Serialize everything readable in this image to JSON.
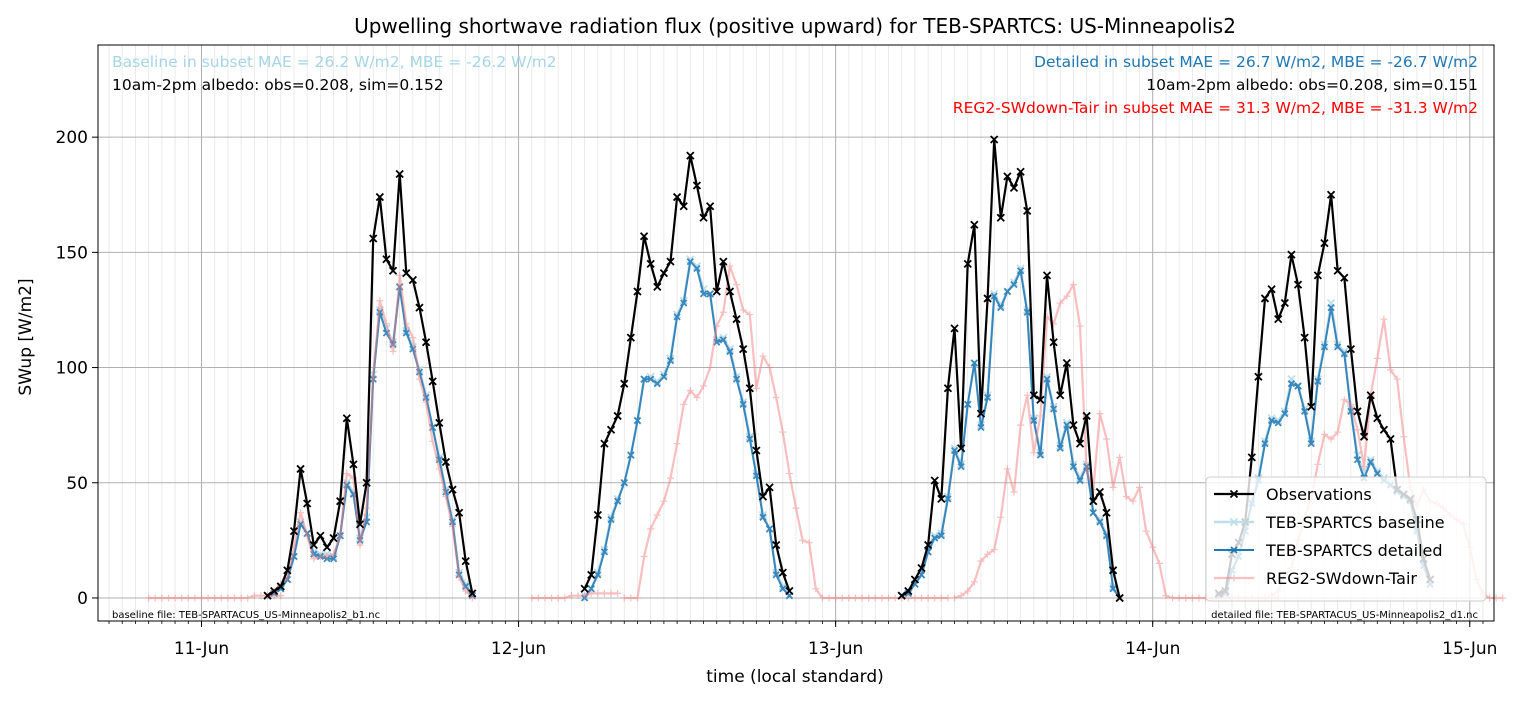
{
  "chart_data": {
    "type": "line",
    "title": "Upwelling shortwave radiation flux (positive upward) for TEB-SPARTCS: US-Minneapolis2",
    "xlabel": "time (local standard)",
    "ylabel": "SWup [W/m2]",
    "xlim": [
      "2011-06-10T16:10",
      "2011-06-15T01:50"
    ],
    "ylim": [
      -10,
      240
    ],
    "x_ticks": [
      {
        "value": "2011-06-11T00:00",
        "label": "11-Jun"
      },
      {
        "value": "2011-06-12T00:00",
        "label": "12-Jun"
      },
      {
        "value": "2011-06-13T00:00",
        "label": "13-Jun"
      },
      {
        "value": "2011-06-14T00:00",
        "label": "14-Jun"
      },
      {
        "value": "2011-06-15T00:00",
        "label": "15-Jun"
      }
    ],
    "y_ticks": [
      0,
      50,
      100,
      150,
      200
    ],
    "grid": true,
    "minor_grid_interval_hours": 1,
    "legend_position": "bottom-right",
    "annotations": {
      "baseline_error": "Baseline in subset MAE = 26.2 W/m2, MBE = -26.2 W/m2",
      "baseline_albedo": "10am-2pm albedo: obs=0.208, sim=0.152",
      "detailed_error": "Detailed in subset MAE = 26.7 W/m2, MBE = -26.7 W/m2",
      "detailed_albedo": "10am-2pm albedo: obs=0.208, sim=0.151",
      "reg2_error": "REG2-SWdown-Tair in subset MAE = 31.3 W/m2, MBE = -31.3 W/m2",
      "baseline_file": "baseline file: TEB-SPARTACUS_US-Minneapolis2_b1.nc",
      "detailed_file": "detailed file: TEB-SPARTACUS_US-Minneapolis2_d1.nc"
    },
    "annotation_colors": {
      "baseline": "#a6d5e5",
      "detailed": "#1f77b4",
      "reg2": "#ff0000",
      "neutral": "#000000"
    },
    "series": [
      {
        "name": "Observations",
        "color": "#000000",
        "marker": "x",
        "segments": [
          {
            "start": "2011-06-11T05:00",
            "step_minutes": 30,
            "values": [
              1,
              3,
              5,
              12,
              29,
              56,
              41,
              23,
              27,
              22,
              26,
              42,
              78,
              58,
              32,
              50,
              156,
              174,
              147,
              142,
              184,
              141,
              138,
              126,
              111,
              94,
              76,
              59,
              47,
              37,
              16,
              2
            ]
          },
          {
            "start": "2011-06-12T05:00",
            "step_minutes": 30,
            "values": [
              4,
              10,
              36,
              67,
              73,
              79,
              93,
              113,
              133,
              157,
              145,
              135,
              141,
              146,
              174,
              170,
              192,
              179,
              165,
              170,
              133,
              146,
              133,
              121,
              108,
              91,
              64,
              44,
              48,
              23,
              11,
              3
            ]
          },
          {
            "start": "2011-06-13T05:00",
            "step_minutes": 30,
            "values": [
              1,
              3,
              8,
              13,
              23,
              51,
              43,
              91,
              117,
              65,
              145,
              162,
              80,
              130,
              199,
              165,
              183,
              178,
              185,
              168,
              88,
              86,
              140,
              111,
              88,
              102,
              75,
              67,
              79,
              42,
              46,
              37,
              12,
              0
            ]
          },
          {
            "start": "2011-06-14T05:00",
            "step_minutes": 30,
            "values": [
              2,
              3,
              19,
              24,
              33,
              61,
              96,
              130,
              134,
              121,
              128,
              149,
              136,
              113,
              83,
              140,
              154,
              175,
              142,
              139,
              108,
              81,
              70,
              88,
              78,
              73,
              69,
              47,
              45,
              43,
              34,
              17,
              8
            ]
          }
        ]
      },
      {
        "name": "TEB-SPARTCS baseline",
        "color": "#b8dbe9",
        "marker": "x",
        "segments": [
          {
            "start": "2011-06-11T05:00",
            "step_minutes": 30,
            "values": [
              1,
              2,
              4,
              8,
              18,
              33,
              28,
              20,
              19,
              19,
              18,
              27,
              50,
              46,
              26,
              35,
              97,
              125,
              117,
              111,
              135,
              116,
              109,
              99,
              88,
              74,
              61,
              47,
              34,
              11,
              6,
              1
            ]
          },
          {
            "start": "2011-06-12T05:00",
            "step_minutes": 30,
            "values": [
              1,
              4,
              11,
              21,
              35,
              43,
              50,
              62,
              77,
              95,
              96,
              94,
              97,
              104,
              123,
              129,
              147,
              144,
              134,
              132,
              112,
              113,
              108,
              96,
              85,
              70,
              54,
              36,
              30,
              11,
              5,
              1
            ]
          },
          {
            "start": "2011-06-13T05:00",
            "step_minutes": 30,
            "values": [
              1,
              2,
              6,
              10,
              20,
              27,
              28,
              44,
              65,
              58,
              84,
              102,
              75,
              88,
              132,
              127,
              133,
              137,
              143,
              125,
              78,
              63,
              96,
              83,
              66,
              76,
              58,
              52,
              58,
              37,
              34,
              28,
              5,
              0
            ]
          },
          {
            "start": "2011-06-14T05:00",
            "step_minutes": 30,
            "values": [
              1,
              2,
              12,
              18,
              29,
              42,
              52,
              68,
              78,
              77,
              81,
              95,
              92,
              82,
              68,
              95,
              110,
              128,
              110,
              107,
              82,
              62,
              54,
              60,
              55,
              52,
              50,
              47,
              45,
              43,
              30,
              15,
              6
            ]
          }
        ]
      },
      {
        "name": "TEB-SPARTCS detailed",
        "color": "#1f77b4",
        "marker": "x",
        "segments": [
          {
            "start": "2011-06-11T05:00",
            "step_minutes": 30,
            "values": [
              1,
              2,
              4,
              8,
              18,
              32,
              28,
              19,
              18,
              17,
              17,
              27,
              49,
              45,
              25,
              33,
              95,
              124,
              115,
              110,
              135,
              115,
              108,
              98,
              87,
              74,
              60,
              46,
              33,
              10,
              5,
              1
            ]
          },
          {
            "start": "2011-06-12T05:00",
            "step_minutes": 30,
            "values": [
              0,
              4,
              10,
              20,
              34,
              42,
              50,
              62,
              77,
              95,
              95,
              93,
              96,
              103,
              122,
              128,
              146,
              143,
              132,
              132,
              111,
              112,
              107,
              95,
              84,
              69,
              53,
              35,
              30,
              10,
              4,
              1
            ]
          },
          {
            "start": "2011-06-13T05:00",
            "step_minutes": 30,
            "values": [
              1,
              2,
              6,
              10,
              20,
              26,
              27,
              43,
              64,
              57,
              84,
              102,
              74,
              87,
              131,
              126,
              133,
              136,
              142,
              124,
              77,
              62,
              95,
              82,
              65,
              75,
              57,
              51,
              57,
              37,
              33,
              27,
              4,
              0
            ]
          },
          {
            "start": "2011-06-14T05:00",
            "step_minutes": 30,
            "values": [
              1,
              2,
              12,
              18,
              29,
              41,
              51,
              67,
              77,
              76,
              80,
              93,
              92,
              81,
              67,
              94,
              109,
              126,
              109,
              106,
              81,
              60,
              52,
              59,
              54,
              51,
              49,
              46,
              44,
              42,
              29,
              14,
              6
            ]
          }
        ]
      },
      {
        "name": "REG2-SWdown-Tair",
        "color": "#f47f80",
        "marker": "+",
        "segments": [
          {
            "start": "2011-06-10T20:00",
            "step_minutes": 30,
            "values": [
              0,
              0,
              0,
              0,
              0,
              0,
              0,
              0,
              0,
              0,
              0,
              0,
              0,
              0,
              0,
              0,
              1,
              1,
              1,
              1,
              1
            ]
          },
          {
            "start": "2011-06-11T05:00",
            "step_minutes": 30,
            "values": [
              1,
              3,
              6,
              9,
              22,
              37,
              27,
              17,
              18,
              18,
              19,
              27,
              54,
              52,
              23,
              39,
              96,
              129,
              119,
              107,
              140,
              119,
              113,
              95,
              85,
              68,
              56,
              44,
              31,
              9,
              3,
              0
            ]
          },
          {
            "start": "2011-06-12T01:00",
            "step_minutes": 30,
            "values": [
              0,
              0,
              0,
              0,
              0,
              0,
              1,
              1,
              1,
              2,
              2,
              2,
              2,
              2
            ]
          },
          {
            "start": "2011-06-12T08:00",
            "step_minutes": 30,
            "values": [
              0,
              0,
              0,
              18,
              30,
              36,
              42,
              52,
              67,
              84,
              90,
              87,
              92,
              100,
              118,
              124,
              144,
              136,
              125,
              123,
              91,
              105,
              100,
              87,
              72,
              54,
              39,
              25,
              24,
              4,
              0,
              0,
              0,
              0,
              0,
              0,
              0,
              0,
              0,
              0,
              0,
              0,
              0,
              0,
              0,
              0,
              0,
              0,
              0,
              0
            ]
          },
          {
            "start": "2011-06-13T09:00",
            "step_minutes": 30,
            "values": [
              0,
              1,
              3,
              7,
              16,
              19,
              21,
              35,
              56,
              46,
              75,
              88,
              63,
              79,
              122,
              119,
              128,
              131,
              136,
              118,
              55,
              47,
              80,
              69,
              48,
              61,
              44,
              42,
              48,
              29,
              22,
              15,
              1,
              0,
              0,
              0,
              0,
              0,
              0,
              0,
              0,
              0,
              0,
              0,
              0,
              0,
              0,
              0,
              0,
              0
            ]
          },
          {
            "start": "2011-06-14T09:00",
            "step_minutes": 30,
            "values": [
              1,
              3,
              10,
              13,
              25,
              35,
              43,
              58,
              71,
              69,
              72,
              86,
              84,
              73,
              57,
              88,
              104,
              121,
              99,
              95,
              70,
              48,
              40,
              47,
              42,
              41,
              39,
              36,
              34,
              32,
              22,
              8,
              2,
              0,
              0,
              0
            ]
          }
        ]
      }
    ]
  }
}
